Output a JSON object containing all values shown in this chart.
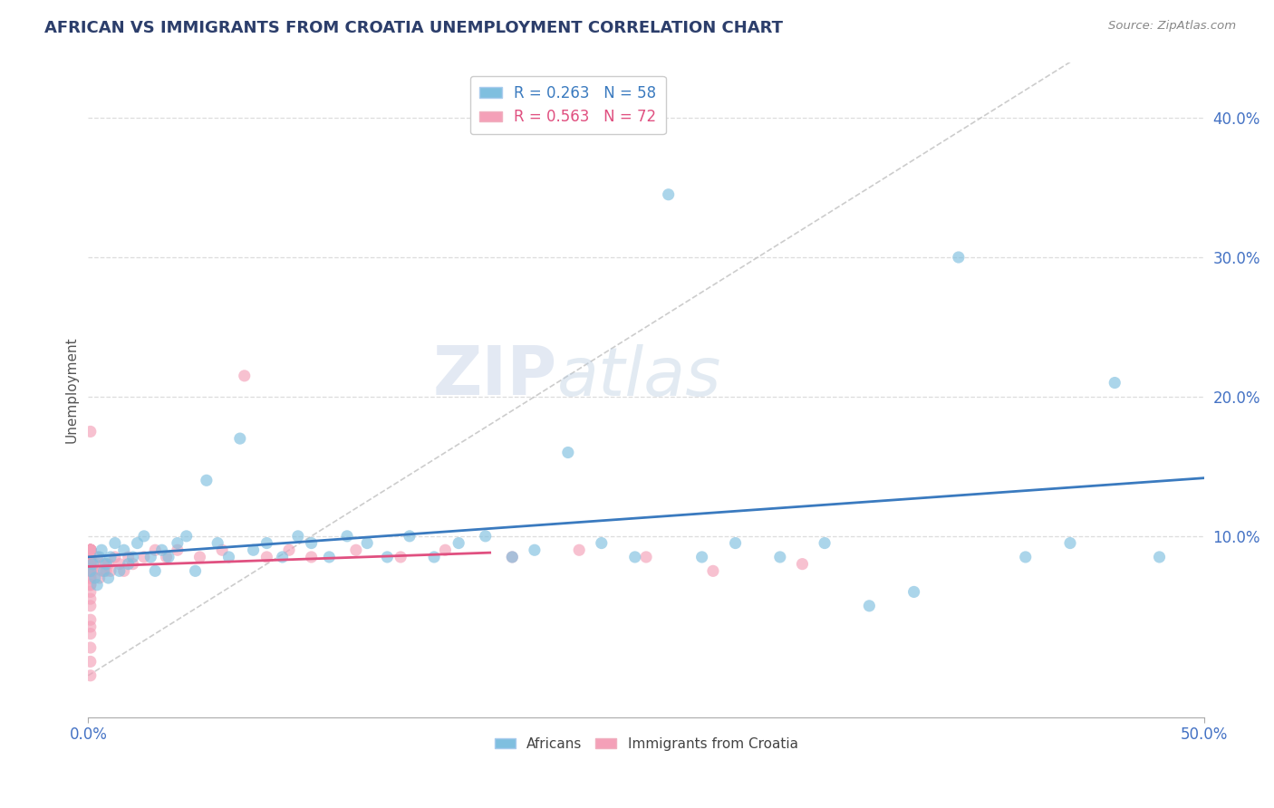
{
  "title": "AFRICAN VS IMMIGRANTS FROM CROATIA UNEMPLOYMENT CORRELATION CHART",
  "source": "Source: ZipAtlas.com",
  "ylabel": "Unemployment",
  "yticks": [
    0.0,
    0.1,
    0.2,
    0.3,
    0.4
  ],
  "ytick_labels": [
    "",
    "10.0%",
    "20.0%",
    "30.0%",
    "40.0%"
  ],
  "xlim": [
    0.0,
    0.5
  ],
  "ylim": [
    -0.03,
    0.44
  ],
  "legend_africans": "R = 0.263   N = 58",
  "legend_croatia": "R = 0.563   N = 72",
  "legend_label_africans": "Africans",
  "legend_label_croatia": "Immigrants from Croatia",
  "color_africans": "#7fbfdf",
  "color_croatia": "#f4a0b8",
  "trendline_africans_color": "#3a7abf",
  "trendline_croatia_color": "#e05080",
  "watermark_zip": "ZIP",
  "watermark_atlas": "atlas",
  "background_color": "#ffffff",
  "africans_x": [
    0.001,
    0.002,
    0.003,
    0.004,
    0.005,
    0.006,
    0.007,
    0.008,
    0.009,
    0.01,
    0.012,
    0.014,
    0.016,
    0.018,
    0.02,
    0.022,
    0.025,
    0.028,
    0.03,
    0.033,
    0.036,
    0.04,
    0.044,
    0.048,
    0.053,
    0.058,
    0.063,
    0.068,
    0.074,
    0.08,
    0.087,
    0.094,
    0.1,
    0.108,
    0.116,
    0.125,
    0.134,
    0.144,
    0.155,
    0.166,
    0.178,
    0.19,
    0.2,
    0.215,
    0.23,
    0.245,
    0.26,
    0.275,
    0.29,
    0.31,
    0.33,
    0.35,
    0.37,
    0.39,
    0.42,
    0.44,
    0.46,
    0.48
  ],
  "africans_y": [
    0.075,
    0.08,
    0.07,
    0.065,
    0.085,
    0.09,
    0.075,
    0.08,
    0.07,
    0.085,
    0.095,
    0.075,
    0.09,
    0.08,
    0.085,
    0.095,
    0.1,
    0.085,
    0.075,
    0.09,
    0.085,
    0.095,
    0.1,
    0.075,
    0.14,
    0.095,
    0.085,
    0.17,
    0.09,
    0.095,
    0.085,
    0.1,
    0.095,
    0.085,
    0.1,
    0.095,
    0.085,
    0.1,
    0.085,
    0.095,
    0.1,
    0.085,
    0.09,
    0.16,
    0.095,
    0.085,
    0.345,
    0.085,
    0.095,
    0.085,
    0.095,
    0.05,
    0.06,
    0.3,
    0.085,
    0.095,
    0.21,
    0.085
  ],
  "croatia_x": [
    0.001,
    0.001,
    0.001,
    0.001,
    0.001,
    0.001,
    0.001,
    0.001,
    0.001,
    0.001,
    0.001,
    0.001,
    0.001,
    0.001,
    0.001,
    0.001,
    0.001,
    0.001,
    0.001,
    0.001,
    0.001,
    0.001,
    0.001,
    0.001,
    0.001,
    0.001,
    0.001,
    0.001,
    0.001,
    0.001,
    0.001,
    0.001,
    0.001,
    0.001,
    0.001,
    0.001,
    0.001,
    0.001,
    0.001,
    0.001,
    0.002,
    0.003,
    0.004,
    0.005,
    0.006,
    0.007,
    0.008,
    0.009,
    0.01,
    0.012,
    0.014,
    0.016,
    0.018,
    0.02,
    0.025,
    0.03,
    0.035,
    0.04,
    0.05,
    0.06,
    0.07,
    0.08,
    0.09,
    0.1,
    0.12,
    0.14,
    0.16,
    0.19,
    0.22,
    0.25,
    0.28,
    0.32
  ],
  "croatia_y": [
    0.0,
    0.01,
    0.02,
    0.03,
    0.035,
    0.04,
    0.05,
    0.055,
    0.06,
    0.065,
    0.065,
    0.07,
    0.07,
    0.075,
    0.075,
    0.075,
    0.08,
    0.08,
    0.08,
    0.085,
    0.085,
    0.085,
    0.085,
    0.09,
    0.09,
    0.09,
    0.09,
    0.09,
    0.09,
    0.09,
    0.09,
    0.09,
    0.09,
    0.09,
    0.09,
    0.09,
    0.09,
    0.09,
    0.175,
    0.085,
    0.075,
    0.08,
    0.085,
    0.07,
    0.075,
    0.08,
    0.075,
    0.08,
    0.075,
    0.085,
    0.08,
    0.075,
    0.085,
    0.08,
    0.085,
    0.09,
    0.085,
    0.09,
    0.085,
    0.09,
    0.215,
    0.085,
    0.09,
    0.085,
    0.09,
    0.085,
    0.09,
    0.085,
    0.09,
    0.085,
    0.075,
    0.08
  ]
}
